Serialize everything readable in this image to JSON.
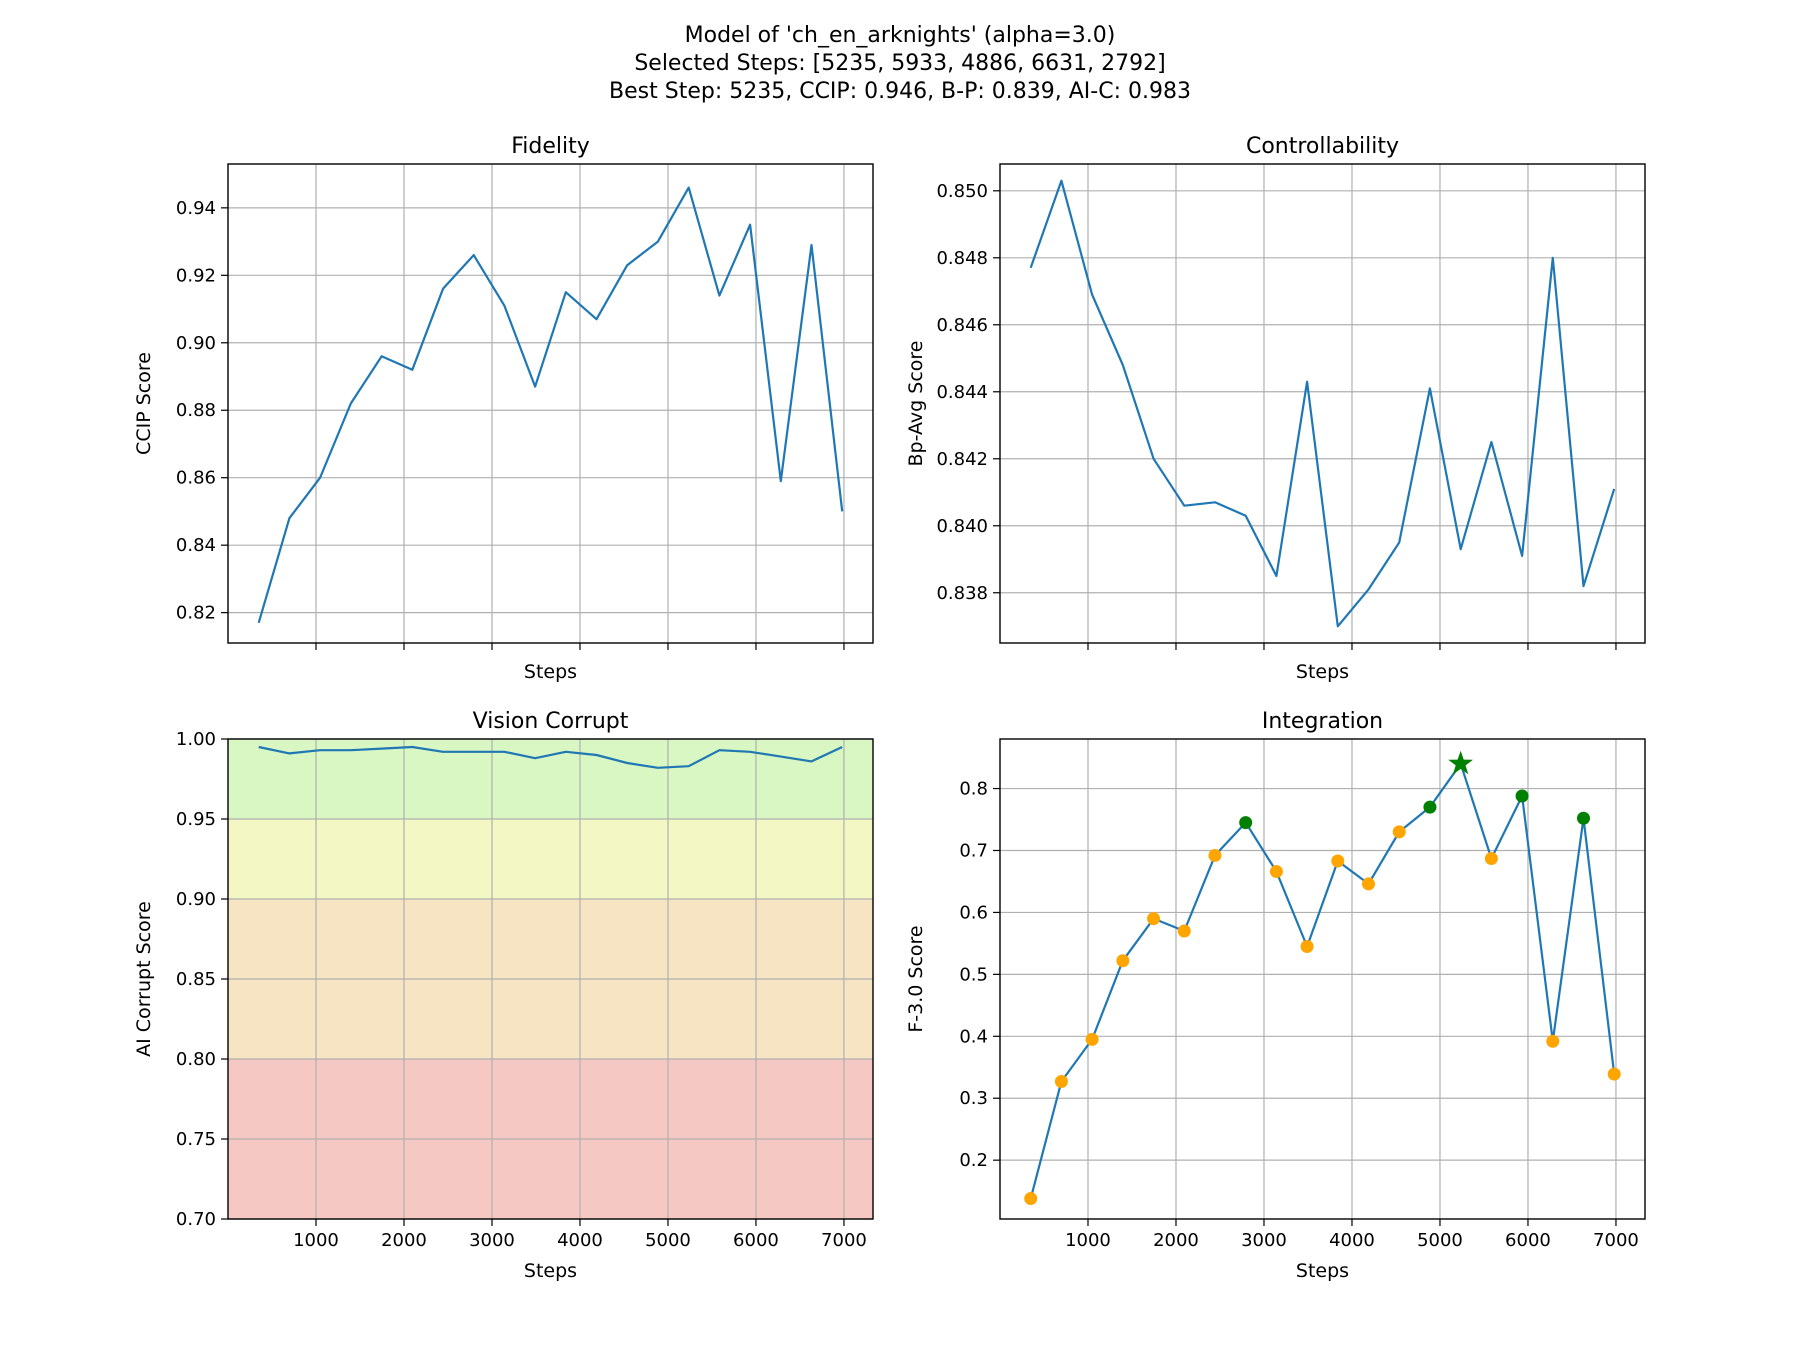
{
  "figure": {
    "title_lines": [
      "Model of 'ch_en_arknights' (alpha=3.0)",
      "Selected Steps: [5235, 5933, 4886, 6631, 2792]",
      "Best Step: 5235, CCIP: 0.946, B-P: 0.839, AI-C: 0.983"
    ]
  },
  "colors": {
    "line": "#1f77b4",
    "grid": "#b0b0b0",
    "point": "#ffa500",
    "selected_point": "#008000",
    "best_star": "#008000",
    "band_good": "#d9f7c3",
    "band_ok": "#f3f7c3",
    "band_warn": "#f6e4c3",
    "band_bad": "#f6c8c3"
  },
  "chart_data": [
    {
      "type": "line",
      "title": "Fidelity",
      "xlabel": "Steps",
      "ylabel": "CCIP Score",
      "xlim": [
        0,
        7330
      ],
      "ylim": [
        0.811,
        0.953
      ],
      "xticks": [
        1000,
        2000,
        3000,
        4000,
        5000,
        6000,
        7000
      ],
      "xticklabels_visible": false,
      "yticks": [
        0.82,
        0.84,
        0.86,
        0.88,
        0.9,
        0.92,
        0.94
      ],
      "yticklabels": [
        "0.82",
        "0.84",
        "0.86",
        "0.88",
        "0.90",
        "0.92",
        "0.94"
      ],
      "grid": true,
      "x": [
        349,
        698,
        1047,
        1396,
        1745,
        2094,
        2443,
        2792,
        3141,
        3490,
        3839,
        4188,
        4537,
        4886,
        5235,
        5584,
        5933,
        6282,
        6631,
        6980
      ],
      "series": [
        {
          "values": [
            0.817,
            0.848,
            0.86,
            0.882,
            0.896,
            0.892,
            0.916,
            0.926,
            0.911,
            0.887,
            0.915,
            0.907,
            0.923,
            0.93,
            0.946,
            0.914,
            0.935,
            0.859,
            0.929,
            0.85
          ]
        }
      ]
    },
    {
      "type": "line",
      "title": "Controllability",
      "xlabel": "Steps",
      "ylabel": "Bp-Avg Score",
      "xlim": [
        0,
        7330
      ],
      "ylim": [
        0.8365,
        0.8508
      ],
      "xticks": [
        1000,
        2000,
        3000,
        4000,
        5000,
        6000,
        7000
      ],
      "xticklabels_visible": false,
      "yticks": [
        0.838,
        0.84,
        0.842,
        0.844,
        0.846,
        0.848,
        0.85
      ],
      "yticklabels": [
        "0.838",
        "0.840",
        "0.842",
        "0.844",
        "0.846",
        "0.848",
        "0.850"
      ],
      "grid": true,
      "x": [
        349,
        698,
        1047,
        1396,
        1745,
        2094,
        2443,
        2792,
        3141,
        3490,
        3839,
        4188,
        4537,
        4886,
        5235,
        5584,
        5933,
        6282,
        6631,
        6980
      ],
      "series": [
        {
          "values": [
            0.8477,
            0.8503,
            0.8469,
            0.8448,
            0.842,
            0.8406,
            0.8407,
            0.8403,
            0.8385,
            0.8443,
            0.837,
            0.8381,
            0.8395,
            0.8441,
            0.8393,
            0.8425,
            0.8391,
            0.848,
            0.8382,
            0.8411
          ]
        }
      ]
    },
    {
      "type": "line",
      "title": "Vision Corrupt",
      "xlabel": "Steps",
      "ylabel": "AI Corrupt Score",
      "xlim": [
        0,
        7330
      ],
      "ylim": [
        0.7,
        1.0
      ],
      "xticks": [
        1000,
        2000,
        3000,
        4000,
        5000,
        6000,
        7000
      ],
      "xticklabels": [
        "1000",
        "2000",
        "3000",
        "4000",
        "5000",
        "6000",
        "7000"
      ],
      "yticks": [
        0.7,
        0.75,
        0.8,
        0.85,
        0.9,
        0.95,
        1.0
      ],
      "yticklabels": [
        "0.70",
        "0.75",
        "0.80",
        "0.85",
        "0.90",
        "0.95",
        "1.00"
      ],
      "grid": true,
      "bands": [
        {
          "from": 0.95,
          "to": 1.0,
          "color_key": "band_good"
        },
        {
          "from": 0.9,
          "to": 0.95,
          "color_key": "band_ok"
        },
        {
          "from": 0.8,
          "to": 0.9,
          "color_key": "band_warn"
        },
        {
          "from": 0.7,
          "to": 0.8,
          "color_key": "band_bad"
        }
      ],
      "x": [
        349,
        698,
        1047,
        1396,
        1745,
        2094,
        2443,
        2792,
        3141,
        3490,
        3839,
        4188,
        4537,
        4886,
        5235,
        5584,
        5933,
        6282,
        6631,
        6980
      ],
      "series": [
        {
          "values": [
            0.995,
            0.991,
            0.993,
            0.993,
            0.994,
            0.995,
            0.992,
            0.992,
            0.992,
            0.988,
            0.992,
            0.99,
            0.985,
            0.982,
            0.983,
            0.993,
            0.992,
            0.989,
            0.986,
            0.995
          ]
        }
      ]
    },
    {
      "type": "line",
      "title": "Integration",
      "xlabel": "Steps",
      "ylabel": "F-3.0 Score",
      "xlim": [
        0,
        7330
      ],
      "ylim": [
        0.105,
        0.88
      ],
      "xticks": [
        1000,
        2000,
        3000,
        4000,
        5000,
        6000,
        7000
      ],
      "xticklabels": [
        "1000",
        "2000",
        "3000",
        "4000",
        "5000",
        "6000",
        "7000"
      ],
      "yticks": [
        0.2,
        0.3,
        0.4,
        0.5,
        0.6,
        0.7,
        0.8
      ],
      "yticklabels": [
        "0.2",
        "0.3",
        "0.4",
        "0.5",
        "0.6",
        "0.7",
        "0.8"
      ],
      "grid": true,
      "x": [
        349,
        698,
        1047,
        1396,
        1745,
        2094,
        2443,
        2792,
        3141,
        3490,
        3839,
        4188,
        4537,
        4886,
        5235,
        5584,
        5933,
        6282,
        6631,
        6980
      ],
      "series": [
        {
          "values": [
            0.138,
            0.327,
            0.395,
            0.522,
            0.59,
            0.57,
            0.692,
            0.745,
            0.666,
            0.545,
            0.683,
            0.646,
            0.73,
            0.77,
            0.84,
            0.687,
            0.788,
            0.392,
            0.752,
            0.339
          ]
        }
      ],
      "selected_steps": [
        5235,
        5933,
        4886,
        6631,
        2792
      ],
      "best_step": 5235
    }
  ]
}
